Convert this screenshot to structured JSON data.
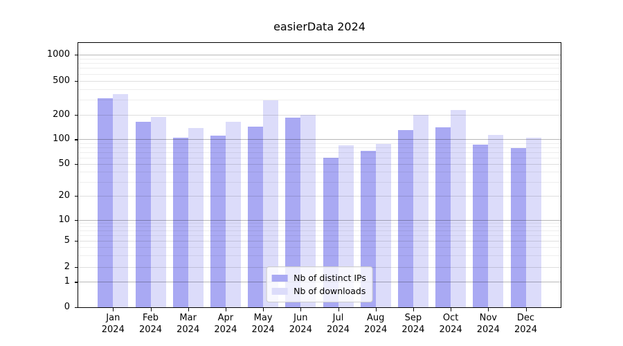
{
  "chart_data": {
    "type": "bar",
    "title": "easierData 2024",
    "categories": [
      "Jan\n2024",
      "Feb\n2024",
      "Mar\n2024",
      "Apr\n2024",
      "May\n2024",
      "Jun\n2024",
      "Jul\n2024",
      "Aug\n2024",
      "Sep\n2024",
      "Oct\n2024",
      "Nov\n2024",
      "Dec\n2024"
    ],
    "series": [
      {
        "name": "Nb of distinct IPs",
        "color": "#a9a9f3",
        "values": [
          312,
          164,
          104,
          112,
          143,
          183,
          60,
          73,
          130,
          140,
          87,
          79
        ]
      },
      {
        "name": "Nb of downloads",
        "color": "#dcdcfa",
        "values": [
          350,
          188,
          138,
          164,
          295,
          200,
          85,
          88,
          198,
          225,
          113,
          105
        ]
      }
    ],
    "yscale": "symlog",
    "yticks": [
      0,
      1,
      2,
      5,
      10,
      20,
      50,
      100,
      200,
      500,
      1000
    ],
    "ylim": [
      0,
      1200
    ],
    "xlabel": "",
    "ylabel": "",
    "grid": "on",
    "legend_position": "lower center"
  }
}
